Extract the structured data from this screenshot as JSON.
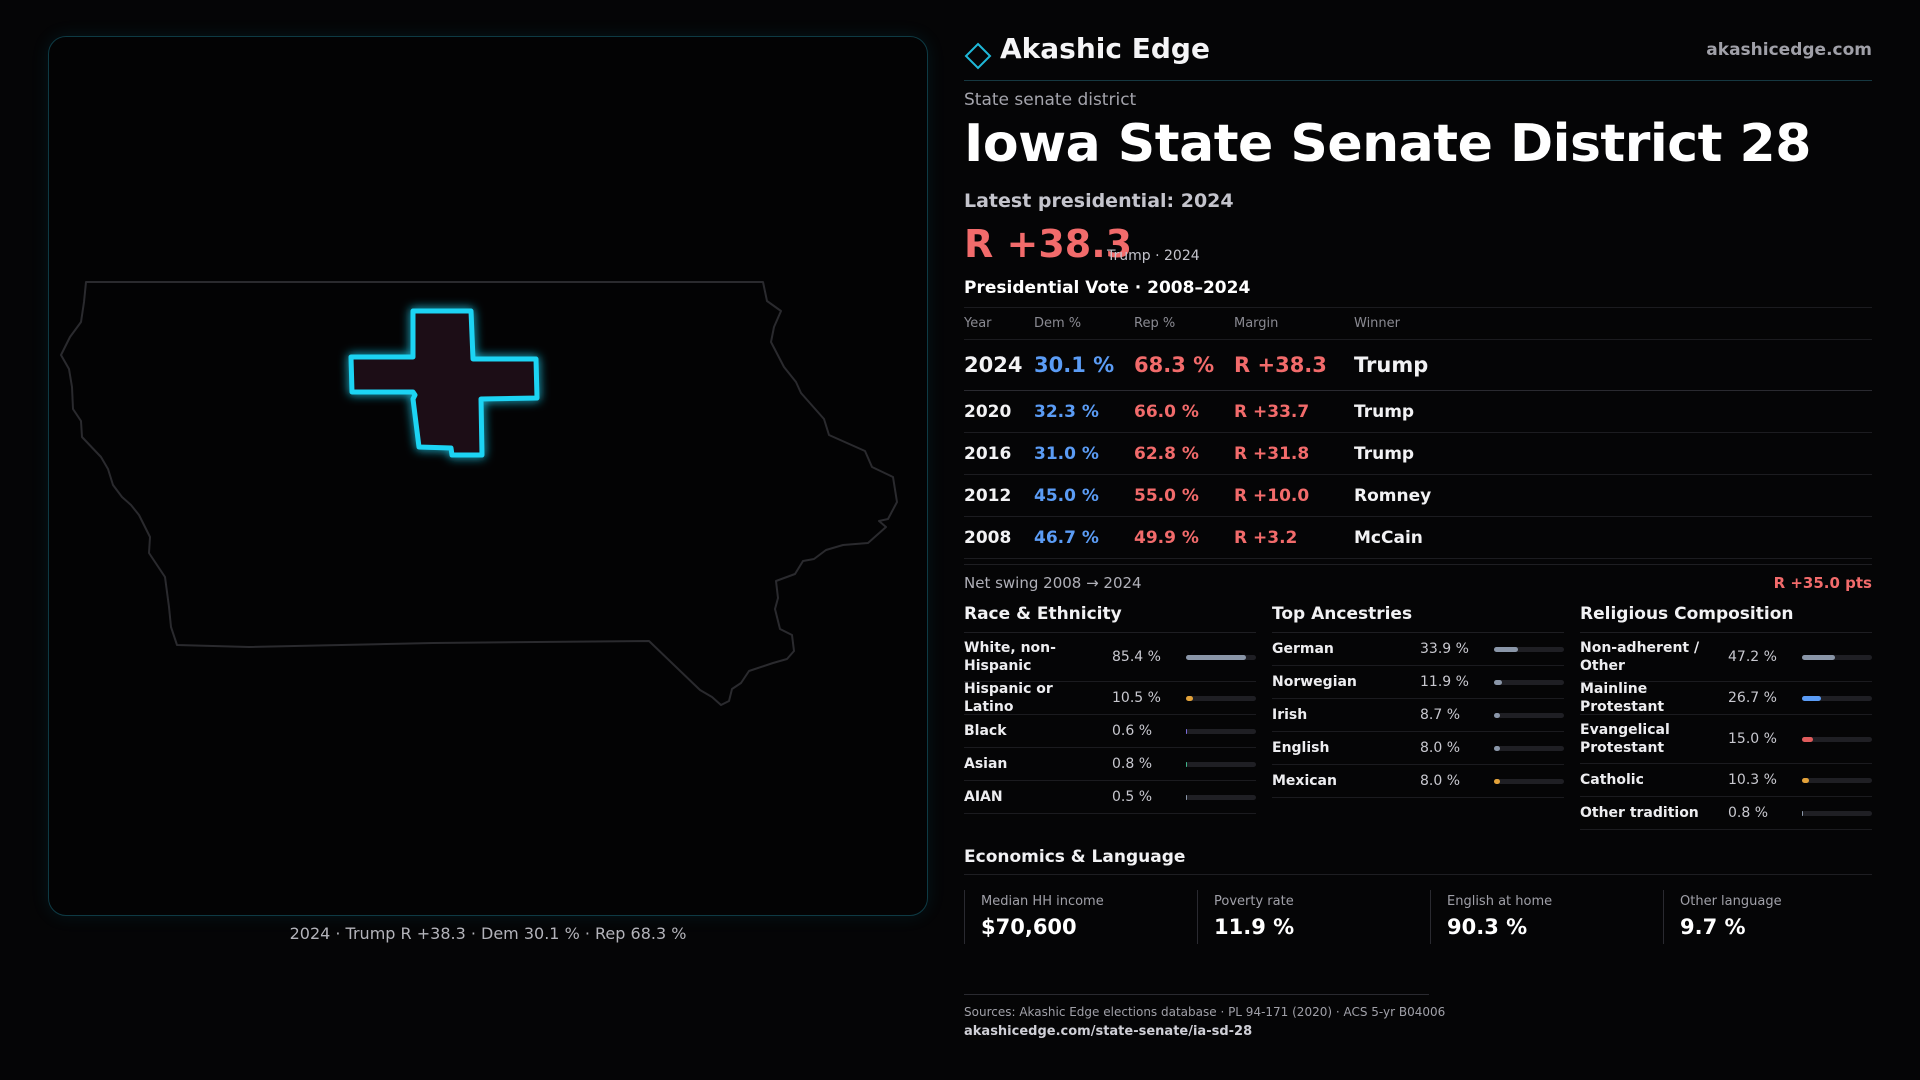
{
  "brand": {
    "name": "Akashic Edge",
    "url": "akashicedge.com",
    "logo_icon": "diamond-outline-icon",
    "accent_color": "#1fc8e8"
  },
  "district": {
    "type_label": "State senate district",
    "title": "Iowa State Senate District 28",
    "latest_label": "Latest presidential: 2024",
    "latest_margin": "R +38.3",
    "latest_sub": "Trump · 2024"
  },
  "map": {
    "caption": "2024 · Trump R +38.3 · Dem 30.1 % · Rep 68.3 %",
    "highlight_color": "#1fd4f4"
  },
  "vote_history": {
    "title": "Presidential Vote · 2008–2024",
    "columns": {
      "year": "Year",
      "dem": "Dem %",
      "rep": "Rep %",
      "margin": "Margin",
      "winner": "Winner"
    },
    "rows": [
      {
        "year": "2024",
        "dem": "30.1 %",
        "rep": "68.3 %",
        "margin": "R +38.3",
        "winner": "Trump"
      },
      {
        "year": "2020",
        "dem": "32.3 %",
        "rep": "66.0 %",
        "margin": "R +33.7",
        "winner": "Trump"
      },
      {
        "year": "2016",
        "dem": "31.0 %",
        "rep": "62.8 %",
        "margin": "R +31.8",
        "winner": "Trump"
      },
      {
        "year": "2012",
        "dem": "45.0 %",
        "rep": "55.0 %",
        "margin": "R +10.0",
        "winner": "Romney"
      },
      {
        "year": "2008",
        "dem": "46.7 %",
        "rep": "49.9 %",
        "margin": "R +3.2",
        "winner": "McCain"
      }
    ],
    "swing_label": "Net swing 2008 → 2024",
    "swing_value": "R +35.0 pts"
  },
  "race": {
    "title": "Race & Ethnicity",
    "items": [
      {
        "label": "White, non-Hispanic",
        "value": "85.4 %",
        "pct": 85.4,
        "color": "#8a96a8"
      },
      {
        "label": "Hispanic or Latino",
        "value": "10.5 %",
        "pct": 10.5,
        "color": "#e3a23a"
      },
      {
        "label": "Black",
        "value": "0.6 %",
        "pct": 0.6,
        "color": "#7a6bd8"
      },
      {
        "label": "Asian",
        "value": "0.8 %",
        "pct": 0.8,
        "color": "#3fb58a"
      },
      {
        "label": "AIAN",
        "value": "0.5 %",
        "pct": 0.5,
        "color": "#8a96a8"
      }
    ]
  },
  "ancestry": {
    "title": "Top Ancestries",
    "items": [
      {
        "label": "German",
        "value": "33.9 %",
        "pct": 33.9,
        "color": "#8a96a8"
      },
      {
        "label": "Norwegian",
        "value": "11.9 %",
        "pct": 11.9,
        "color": "#8a96a8"
      },
      {
        "label": "Irish",
        "value": "8.7 %",
        "pct": 8.7,
        "color": "#8a96a8"
      },
      {
        "label": "English",
        "value": "8.0 %",
        "pct": 8.0,
        "color": "#8a96a8"
      },
      {
        "label": "Mexican",
        "value": "8.0 %",
        "pct": 8.0,
        "color": "#e3a23a"
      }
    ]
  },
  "religion": {
    "title": "Religious Composition",
    "items": [
      {
        "label": "Non-adherent / Other",
        "value": "47.2 %",
        "pct": 47.2,
        "color": "#8a96a8"
      },
      {
        "label": "Mainline Protestant",
        "value": "26.7 %",
        "pct": 26.7,
        "color": "#5b9cf5"
      },
      {
        "label": "Evangelical Protestant",
        "value": "15.0 %",
        "pct": 15.0,
        "color": "#e05c5c"
      },
      {
        "label": "Catholic",
        "value": "10.3 %",
        "pct": 10.3,
        "color": "#e3a23a"
      },
      {
        "label": "Other tradition",
        "value": "0.8 %",
        "pct": 0.8,
        "color": "#8a96a8"
      }
    ]
  },
  "economics": {
    "title": "Economics & Language",
    "cards": [
      {
        "label": "Median HH income",
        "value": "$70,600"
      },
      {
        "label": "Poverty rate",
        "value": "11.9 %"
      },
      {
        "label": "English at home",
        "value": "90.3 %"
      },
      {
        "label": "Other language",
        "value": "9.7 %"
      }
    ]
  },
  "sources": {
    "text": "Sources: Akashic Edge elections database · PL 94-171 (2020) · ACS 5-yr B04006",
    "link": "akashicedge.com/state-senate/ia-sd-28"
  }
}
